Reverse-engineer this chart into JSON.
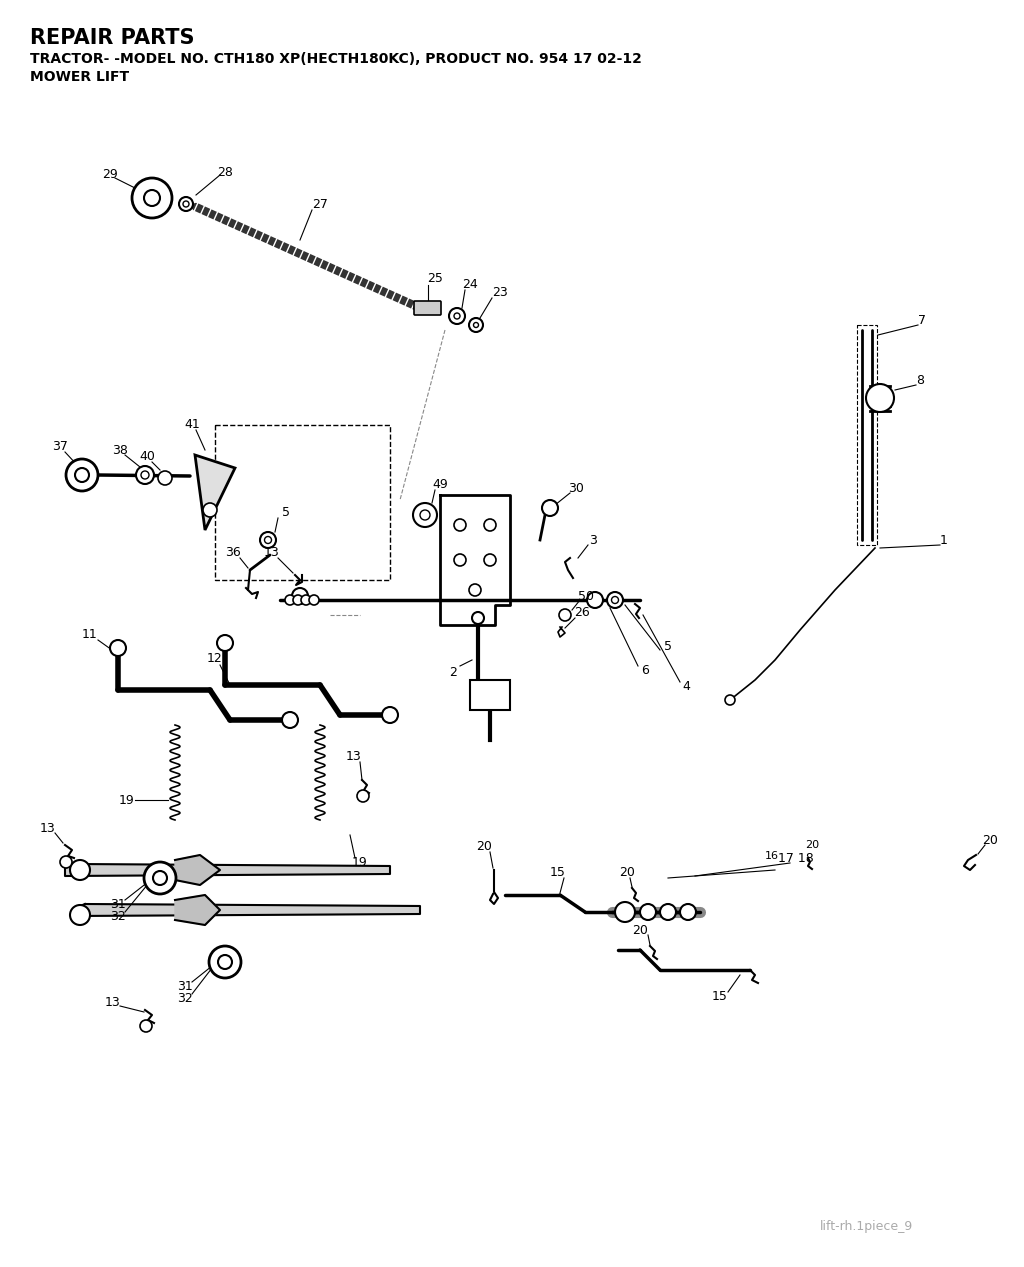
{
  "title": "REPAIR PARTS",
  "subtitle1": "TRACTOR- -MODEL NO. CTH180 XP(HECTH180KC), PRODUCT NO. 954 17 02-12",
  "subtitle2": "MOWER LIFT",
  "footer": "lift-rh.1piece_9",
  "bg_color": "#ffffff"
}
